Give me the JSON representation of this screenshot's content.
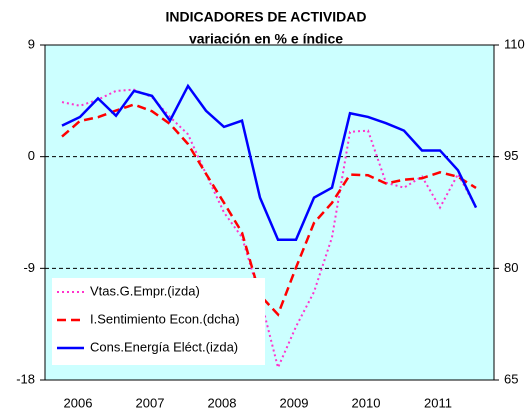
{
  "chart_data": {
    "type": "line",
    "title": "INDICADORES DE ACTIVIDAD",
    "subtitle": "variación en % e índice",
    "categories": [
      "2006",
      null,
      null,
      null,
      "2007",
      null,
      null,
      null,
      "2008",
      null,
      null,
      null,
      "2009",
      null,
      null,
      null,
      "2010",
      null,
      null,
      null,
      "2011",
      null,
      null,
      null
    ],
    "series": [
      {
        "name": "Vtas.G.Empr.(izda)",
        "color": "#ff33cc",
        "style": "dotted",
        "axis": "y",
        "values": [
          4.4,
          4.1,
          4.6,
          5.3,
          5.4,
          4.8,
          3.2,
          1.8,
          -1.4,
          -4.5,
          -6.5,
          -11.3,
          -17.0,
          -13.7,
          -10.9,
          -6.5,
          2.0,
          2.1,
          -2.1,
          -2.5,
          -1.6,
          -4.1,
          -1.4,
          -4.1
        ]
      },
      {
        "name": "I.Sentimiento Econ.(dcha)",
        "color": "#ff0000",
        "style": "dashed",
        "axis": "y2",
        "values": [
          97.7,
          99.8,
          100.3,
          101.2,
          102.0,
          101.1,
          99.4,
          96.7,
          92.7,
          88.8,
          84.8,
          76.4,
          73.8,
          80.1,
          86.1,
          88.8,
          92.6,
          92.5,
          91.4,
          91.9,
          92.1,
          92.9,
          92.3,
          90.8
        ]
      },
      {
        "name": "Cons.Energía Eléct.(izda)",
        "color": "#0000ff",
        "style": "solid",
        "axis": "y",
        "values": [
          2.5,
          3.2,
          4.7,
          3.3,
          5.3,
          4.9,
          2.9,
          5.7,
          3.7,
          2.4,
          2.9,
          -3.3,
          -6.7,
          -6.7,
          -3.3,
          -2.5,
          3.5,
          3.2,
          2.7,
          2.1,
          0.5,
          0.5,
          -1.1,
          -4.1
        ]
      }
    ],
    "ylim": [
      -18,
      9
    ],
    "yticks": [
      -18,
      -9,
      0,
      9
    ],
    "y2lim": [
      65,
      110
    ],
    "y2ticks": [
      65,
      80,
      95,
      110
    ],
    "grid": true,
    "legend": "lower left",
    "background": "#ccffff"
  }
}
